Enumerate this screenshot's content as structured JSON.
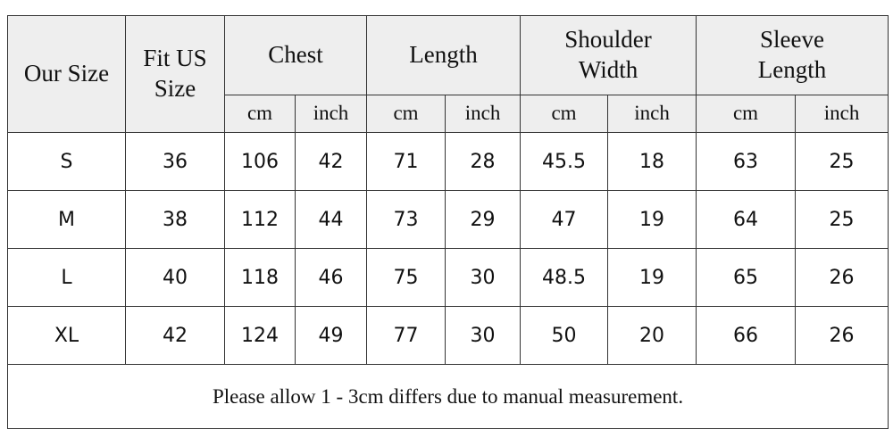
{
  "table": {
    "header": {
      "groups": [
        "Our Size",
        "Fit US Size",
        "Chest",
        "Length",
        "Shoulder Width",
        "Sleeve Length"
      ],
      "units": [
        "cm",
        "inch",
        "cm",
        "inch",
        "cm",
        "inch",
        "cm",
        "inch"
      ]
    },
    "rows": [
      [
        "S",
        36,
        106,
        42,
        71,
        28,
        45.5,
        18,
        63,
        25
      ],
      [
        "M",
        38,
        112,
        44,
        73,
        29,
        47,
        19,
        64,
        25
      ],
      [
        "L",
        40,
        118,
        46,
        75,
        30,
        48.5,
        19,
        65,
        26
      ],
      [
        "XL",
        42,
        124,
        49,
        77,
        30,
        50,
        20,
        66,
        26
      ]
    ],
    "note": "Please allow 1 - 3cm differs due to manual measurement."
  }
}
